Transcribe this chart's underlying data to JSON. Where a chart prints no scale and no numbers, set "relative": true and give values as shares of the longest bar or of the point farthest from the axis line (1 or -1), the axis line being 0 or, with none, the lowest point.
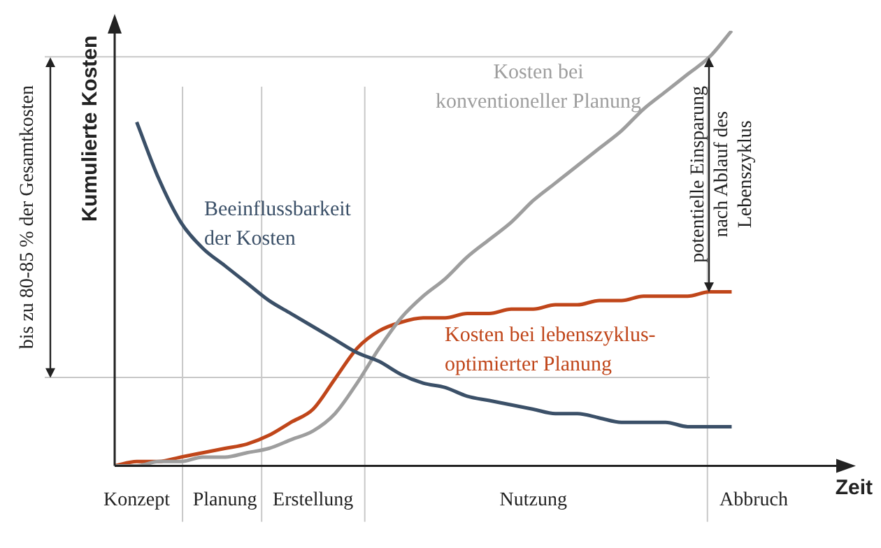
{
  "chart_data": {
    "type": "line",
    "relative": true,
    "xlabel": "Zeit",
    "ylabel": "Kumulierte Kosten",
    "marker": "none",
    "line_style": "solid",
    "categories": [
      null,
      "Konzept",
      null,
      null,
      null,
      "Planung",
      null,
      null,
      null,
      "Erstellung",
      null,
      null,
      null,
      null,
      null,
      null,
      null,
      null,
      null,
      "Nutzung",
      null,
      null,
      null,
      null,
      null,
      null,
      null,
      null,
      null,
      "Abbruch",
      null,
      null,
      null,
      null
    ],
    "series": [
      {
        "name": "Beeinflussbarkeit\nder Kosten",
        "color": "#3b5068",
        "values": [
          null,
          0.79,
          0.66,
          0.56,
          0.5,
          0.46,
          0.42,
          0.38,
          0.35,
          0.32,
          0.29,
          0.26,
          0.24,
          0.21,
          0.19,
          0.18,
          0.16,
          0.15,
          0.14,
          0.13,
          0.12,
          0.12,
          0.11,
          0.1,
          0.1,
          0.1,
          0.09,
          0.09,
          0.09,
          null,
          null,
          null,
          null,
          null
        ]
      },
      {
        "name": "Kosten bei\nkonventioneller Planung",
        "color": "#9e9e9e",
        "values": [
          0,
          0,
          0.01,
          0.01,
          0.02,
          0.02,
          0.03,
          0.04,
          0.06,
          0.08,
          0.12,
          0.19,
          0.27,
          0.34,
          0.39,
          0.43,
          0.48,
          0.52,
          0.56,
          0.61,
          0.65,
          0.69,
          0.73,
          0.77,
          0.82,
          0.86,
          0.9,
          0.94,
          1,
          null,
          null,
          null,
          null,
          null
        ]
      },
      {
        "name": "Kosten bei lebenszyklus-\noptimierter Planung",
        "color": "#c0461a",
        "values": [
          0,
          0.01,
          0.01,
          0.02,
          0.03,
          0.04,
          0.05,
          0.07,
          0.1,
          0.13,
          0.2,
          0.27,
          0.31,
          0.33,
          0.34,
          0.34,
          0.35,
          0.35,
          0.36,
          0.36,
          0.37,
          0.37,
          0.38,
          0.38,
          0.39,
          0.39,
          0.39,
          0.4,
          0.4,
          null,
          null,
          null,
          null,
          null
        ]
      }
    ],
    "annotations": [
      "bis zu 80-85 % der Gesamtkosten",
      "potentielle Einsparung\nnach Ablauf des\nLebenszyklus"
    ]
  }
}
